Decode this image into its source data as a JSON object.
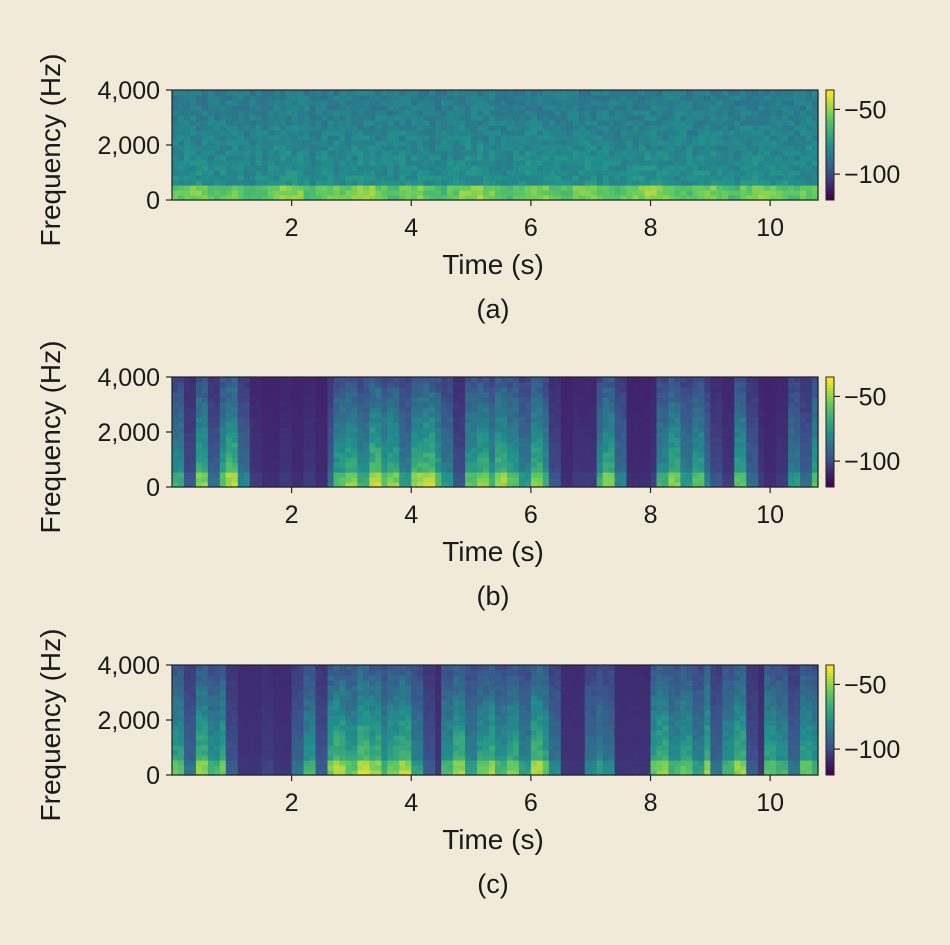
{
  "colors": {
    "background": "#f1ead9",
    "colormap": [
      "#440154",
      "#3b528b",
      "#21918c",
      "#5ec962",
      "#fde725"
    ]
  },
  "chart_data": [
    {
      "type": "heatmap",
      "subtitle": "(a)",
      "xlabel": "Time (s)",
      "ylabel": "Frequency (Hz)",
      "xlim": [
        0,
        10.8
      ],
      "ylim": [
        0,
        4000
      ],
      "xticks": [
        2,
        4,
        6,
        8,
        10
      ],
      "xtick_labels": [
        "2",
        "4",
        "6",
        "8",
        "10"
      ],
      "yticks": [
        0,
        2000,
        4000
      ],
      "ytick_labels": [
        "0",
        "2,000",
        "4,000"
      ],
      "colorbar": {
        "range": [
          -120,
          -35
        ],
        "ticks": [
          -50,
          -100
        ],
        "tick_labels": [
          "−50",
          "−100"
        ]
      },
      "background_level_db": -85,
      "energy_envelope": [
        0.7,
        0.8,
        0.85,
        0.6,
        0.7,
        0.75,
        0.55,
        0.65,
        0.8,
        0.9,
        0.85,
        0.6,
        0.7,
        0.8,
        0.75,
        0.85,
        0.9,
        0.7,
        0.6,
        0.75,
        0.8,
        0.65,
        0.55,
        0.7,
        0.85,
        0.9,
        0.8,
        0.7,
        0.6,
        0.75,
        0.85,
        0.8,
        0.7,
        0.65,
        0.8,
        0.85,
        0.75,
        0.6,
        0.7,
        0.8,
        0.9,
        0.85,
        0.7,
        0.65,
        0.75,
        0.8,
        0.7,
        0.6,
        0.75,
        0.85,
        0.8,
        0.7,
        0.65,
        0.75,
        0.8
      ]
    },
    {
      "type": "heatmap",
      "subtitle": "(b)",
      "xlabel": "Time (s)",
      "ylabel": "Frequency (Hz)",
      "xlim": [
        0,
        10.8
      ],
      "ylim": [
        0,
        4000
      ],
      "xticks": [
        2,
        4,
        6,
        8,
        10
      ],
      "xtick_labels": [
        "2",
        "4",
        "6",
        "8",
        "10"
      ],
      "yticks": [
        0,
        2000,
        4000
      ],
      "ytick_labels": [
        "0",
        "2,000",
        "4,000"
      ],
      "colorbar": {
        "range": [
          -120,
          -35
        ],
        "ticks": [
          -50,
          -100
        ],
        "tick_labels": [
          "−50",
          "−100"
        ]
      },
      "background_level_db": -112,
      "energy_envelope": [
        0.6,
        0.2,
        0.8,
        0.3,
        0.7,
        0.9,
        0.4,
        0.1,
        0.05,
        0.05,
        0.1,
        0.05,
        0.1,
        0.05,
        0.3,
        0.7,
        0.8,
        0.6,
        0.9,
        0.7,
        0.8,
        0.5,
        0.85,
        0.9,
        0.7,
        0.5,
        0.2,
        0.7,
        0.8,
        0.6,
        0.85,
        0.7,
        0.5,
        0.8,
        0.6,
        0.2,
        0.05,
        0.1,
        0.1,
        0.6,
        0.8,
        0.4,
        0.05,
        0.05,
        0.1,
        0.6,
        0.8,
        0.5,
        0.7,
        0.4,
        0.2,
        0.1,
        0.7,
        0.3,
        0.1,
        0.05,
        0.1,
        0.5,
        0.3,
        0.7
      ]
    },
    {
      "type": "heatmap",
      "subtitle": "(c)",
      "xlabel": "Time (s)",
      "ylabel": "Frequency (Hz)",
      "xlim": [
        0,
        10.8
      ],
      "ylim": [
        0,
        4000
      ],
      "xticks": [
        2,
        4,
        6,
        8,
        10
      ],
      "xtick_labels": [
        "2",
        "4",
        "6",
        "8",
        "10"
      ],
      "yticks": [
        0,
        2000,
        4000
      ],
      "ytick_labels": [
        "0",
        "2,000",
        "4,000"
      ],
      "colorbar": {
        "range": [
          -120,
          -35
        ],
        "ticks": [
          -50,
          -100
        ],
        "tick_labels": [
          "−50",
          "−100"
        ]
      },
      "background_level_db": -110,
      "energy_envelope": [
        0.7,
        0.3,
        0.8,
        0.6,
        0.75,
        0.2,
        0.05,
        0.05,
        0.1,
        0.05,
        0.05,
        0.3,
        0.6,
        0.2,
        0.75,
        0.85,
        0.7,
        0.9,
        0.8,
        0.6,
        0.75,
        0.85,
        0.5,
        0.2,
        0.05,
        0.6,
        0.8,
        0.5,
        0.7,
        0.8,
        0.6,
        0.75,
        0.5,
        0.85,
        0.7,
        0.4,
        0.05,
        0.05,
        0.4,
        0.5,
        0.4,
        0.05,
        0.05,
        0.05,
        0.7,
        0.8,
        0.6,
        0.7,
        0.5,
        0.8,
        0.3,
        0.6,
        0.8,
        0.2,
        0.05,
        0.7,
        0.6,
        0.3,
        0.7,
        0.6
      ]
    }
  ]
}
